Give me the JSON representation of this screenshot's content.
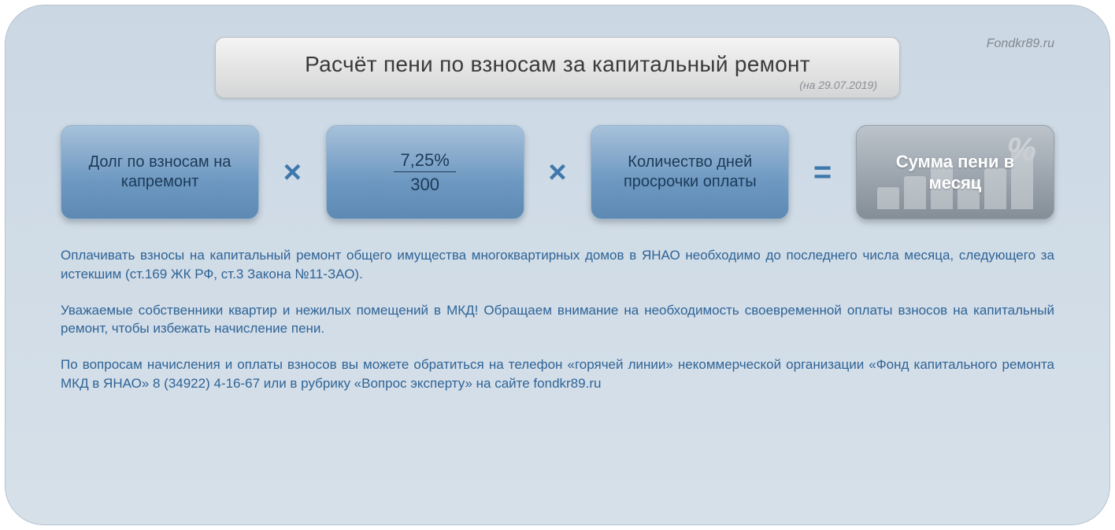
{
  "watermark": "Fondkr89.ru",
  "title": {
    "main": "Расчёт пени по взносам за капитальный ремонт",
    "date": "(на 29.07.2019)"
  },
  "formula": {
    "box1": "Долг по взносам на капремонт",
    "op1": "×",
    "rate_top": "7,25%",
    "rate_bottom": "300",
    "op2": "×",
    "box3": "Количество дней просрочки оплаты",
    "op3": "=",
    "result": "Сумма пени в месяц",
    "result_bg_percent": "%",
    "result_bg_bars": [
      28,
      42,
      60,
      36,
      52,
      76
    ]
  },
  "paragraphs": {
    "p1": "Оплачивать взносы на капитальный ремонт общего имущества многоквартирных домов в ЯНАО необходимо до последнего числа месяца, следующего за истекшим (ст.169 ЖК РФ, ст.3 Закона №11-ЗАО).",
    "p2": "Уважаемые собственники квартир и нежилых помещений в МКД! Обращаем внимание на необходимость своевременной оплаты взносов на капитальный ремонт, чтобы избежать начисление пени.",
    "p3": "По вопросам начисления и оплаты взносов вы можете обратиться на телефон «горячей линии» некоммерческой организации «Фонд капитального ремонта МКД в ЯНАО» 8 (34922) 4-16-67 или в рубрику «Вопрос эксперту» на сайте fondkr89.ru"
  },
  "style": {
    "card_bg_top": "#cbd8e4",
    "card_bg_bottom": "#d6e0e9",
    "title_text_color": "#3a3a3a",
    "pill_blue_text": "#1c3a57",
    "operator_color": "#3e78ad",
    "body_text_color": "#2f6497",
    "result_text_color": "#ffffff"
  }
}
